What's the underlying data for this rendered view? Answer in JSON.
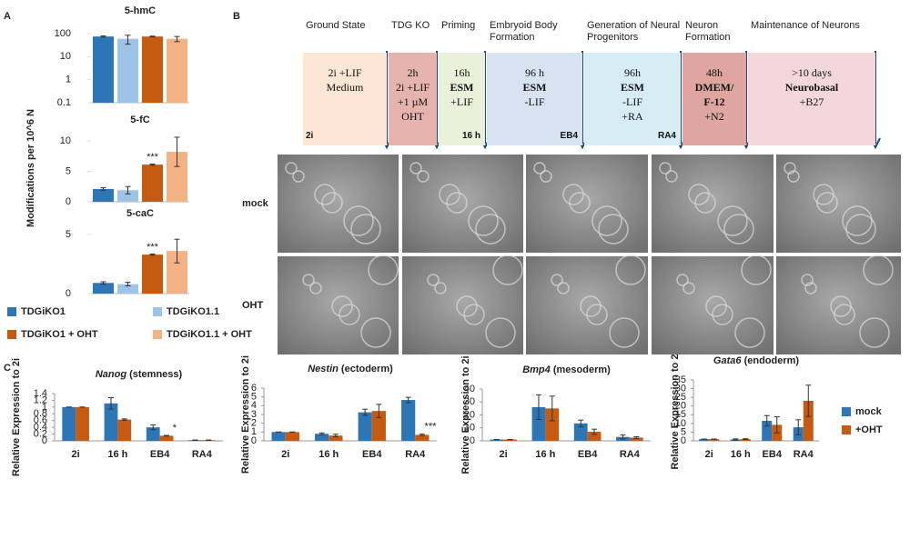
{
  "panel_labels": [
    "A",
    "B",
    "C"
  ],
  "panel_a": {
    "y_label": "Modifications per 10^6 N",
    "legend": [
      {
        "name": "TDGiKO1",
        "color": "#2e75b6"
      },
      {
        "name": "TDGiKO1.1",
        "color": "#9dc3e6"
      },
      {
        "name": "TDGiKO1 + OHT",
        "color": "#c55a11"
      },
      {
        "name": "TDGiKO1.1 + OHT",
        "color": "#f4b183"
      }
    ]
  },
  "panel_c": {
    "legend": [
      {
        "name": "mock",
        "color": "#2e75b6"
      },
      {
        "name": "+OHT",
        "color": "#c55a11"
      }
    ]
  },
  "chart_data": [
    {
      "type": "bar",
      "title": "5-hmC",
      "log_scale": true,
      "values": [
        75,
        60,
        75,
        60
      ],
      "errors": [
        5,
        25,
        3,
        15
      ],
      "annotations": [
        null,
        null,
        null,
        null
      ],
      "ylim": [
        0.1,
        100
      ],
      "yticks": [
        0.1,
        1,
        10,
        100
      ]
    },
    {
      "type": "bar",
      "title": "5-fC",
      "log_scale": false,
      "values": [
        2.1,
        1.9,
        6.1,
        8.2
      ],
      "errors": [
        0.2,
        0.6,
        0.1,
        2.4
      ],
      "annotations": [
        null,
        null,
        "***",
        null
      ],
      "ylim": [
        0,
        11
      ],
      "yticks": [
        0,
        5,
        10
      ]
    },
    {
      "type": "bar",
      "title": "5-caC",
      "log_scale": false,
      "values": [
        0.9,
        0.8,
        3.3,
        3.6
      ],
      "errors": [
        0.1,
        0.15,
        0.05,
        1.0
      ],
      "annotations": [
        null,
        null,
        "***",
        null
      ],
      "ylim": [
        0,
        5
      ],
      "yticks": [
        0,
        5
      ]
    },
    {
      "type": "grouped_bar",
      "title_gene": "Nanog",
      "title_rest": "(stemness)",
      "y_label": "Relative Expression to 2i",
      "categories": [
        "2i",
        "16 h",
        "EB4",
        "RA4"
      ],
      "series": [
        {
          "values": [
            1,
            1.11,
            0.4,
            0.02
          ],
          "errors": [
            0,
            0.17,
            0.07,
            0.005
          ],
          "annotations": [
            null,
            null,
            null,
            null
          ]
        },
        {
          "values": [
            1,
            0.63,
            0.15,
            0.02
          ],
          "errors": [
            0,
            0.02,
            0.01,
            0.005
          ],
          "annotations": [
            null,
            null,
            "*",
            null
          ]
        }
      ],
      "ylim": [
        0,
        1.4
      ],
      "yticks": [
        0,
        0.2,
        0.4,
        0.6,
        0.8,
        1,
        1.2,
        1.4
      ]
    },
    {
      "type": "grouped_bar",
      "title_gene": "Nestin",
      "title_rest": "(ectoderm)",
      "y_label": "Relative Expression to 2i",
      "categories": [
        "2i",
        "16 h",
        "EB4",
        "RA4"
      ],
      "series": [
        {
          "values": [
            1,
            0.8,
            3.25,
            4.65
          ],
          "errors": [
            0,
            0.1,
            0.35,
            0.3
          ],
          "annotations": [
            null,
            null,
            null,
            null
          ]
        },
        {
          "values": [
            1,
            0.6,
            3.4,
            0.68
          ],
          "errors": [
            0,
            0.15,
            0.75,
            0.08
          ],
          "annotations": [
            null,
            null,
            null,
            "***"
          ]
        }
      ],
      "ylim": [
        0,
        6
      ],
      "yticks": [
        0,
        1,
        2,
        3,
        4,
        5,
        6
      ]
    },
    {
      "type": "grouped_bar",
      "title_gene": "Bmp4",
      "title_rest": "(mesoderm)",
      "y_label": "Relative Expression to 2i",
      "categories": [
        "2i",
        "16 h",
        "EB4",
        "RA4"
      ],
      "series": [
        {
          "values": [
            1,
            26,
            13.5,
            3
          ],
          "errors": [
            0,
            9.5,
            2.5,
            1.5
          ],
          "annotations": [
            null,
            null,
            null,
            null
          ]
        },
        {
          "values": [
            1,
            25,
            7,
            2.5
          ],
          "errors": [
            0,
            9.5,
            2,
            0.7
          ],
          "annotations": [
            null,
            null,
            null,
            null
          ]
        }
      ],
      "ylim": [
        0,
        40
      ],
      "yticks": [
        0,
        10,
        20,
        30,
        40
      ]
    },
    {
      "type": "grouped_bar",
      "title_gene": "Gata6",
      "title_rest": "(endoderm)",
      "y_label": "Relative Expression to 2i",
      "categories": [
        "2i",
        "16 h",
        "EB4",
        "RA4"
      ],
      "series": [
        {
          "values": [
            1,
            0.8,
            11.5,
            7.8
          ],
          "errors": [
            0,
            0.3,
            3,
            4.3
          ],
          "annotations": [
            null,
            null,
            null,
            null
          ]
        },
        {
          "values": [
            1,
            1,
            9.2,
            23
          ],
          "errors": [
            0,
            0.2,
            4.6,
            9
          ],
          "annotations": [
            null,
            null,
            null,
            null
          ]
        }
      ],
      "ylim": [
        0,
        35
      ],
      "yticks": [
        0,
        5,
        10,
        15,
        20,
        25,
        30,
        35
      ]
    }
  ],
  "timeline": {
    "rows": [
      "mock",
      "OHT"
    ],
    "stages": [
      {
        "header": "Ground State",
        "lines": [
          "2i +LIF",
          "Medium"
        ],
        "bold_lines": [],
        "corner": "2i",
        "color": "#fce6d4"
      },
      {
        "header": "TDG KO",
        "lines": [
          "2h",
          "2i +LIF",
          "+1 µM",
          "OHT"
        ],
        "bold_lines": [],
        "corner": null,
        "color": "#e6b3ae"
      },
      {
        "header": "Priming",
        "lines": [
          "16h",
          "ESM",
          "+LIF"
        ],
        "bold_lines": [
          1
        ],
        "corner": "16 h",
        "color": "#e9f1da"
      },
      {
        "header": "Embryoid Body Formation",
        "lines": [
          "96 h",
          "ESM",
          "-LIF"
        ],
        "bold_lines": [
          1
        ],
        "corner": "EB4",
        "color": "#d8e3f2"
      },
      {
        "header": "Generation of Neural Progenitors",
        "lines": [
          "96h",
          "ESM",
          "-LIF",
          "+RA"
        ],
        "bold_lines": [
          1
        ],
        "corner": "RA4",
        "color": "#d6edf6"
      },
      {
        "header": "Neuron Formation",
        "lines": [
          "48h",
          "DMEM/",
          "F-12",
          "+N2"
        ],
        "bold_lines": [
          1,
          2
        ],
        "corner": null,
        "color": "#dea5a1"
      },
      {
        "header": "Maintenance of Neurons",
        "lines": [
          ">10 days",
          "Neurobasal",
          "+B27"
        ],
        "bold_lines": [
          1
        ],
        "corner": null,
        "color": "#f3d7db"
      }
    ]
  }
}
